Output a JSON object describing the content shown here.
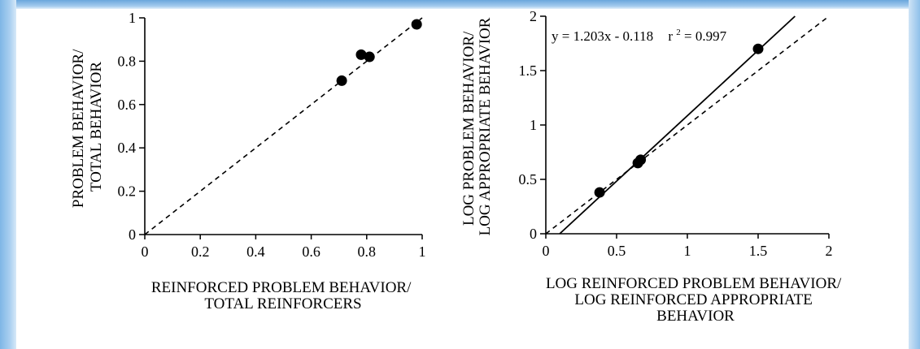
{
  "chart_data": [
    {
      "type": "scatter",
      "xlabel": [
        "REINFORCED PROBLEM BEHAVIOR/",
        "TOTAL REINFORCERS"
      ],
      "ylabel": [
        "PROBLEM BEHAVIOR/",
        "TOTAL BEHAVIOR"
      ],
      "xlim": [
        0,
        1
      ],
      "ylim": [
        0,
        1
      ],
      "xticks": [
        "0",
        "0.2",
        "0.4",
        "0.6",
        "0.8",
        "1"
      ],
      "yticks": [
        "0",
        "0.2",
        "0.4",
        "0.6",
        "0.8",
        "1"
      ],
      "points": [
        {
          "x": 0.71,
          "y": 0.71
        },
        {
          "x": 0.78,
          "y": 0.83
        },
        {
          "x": 0.81,
          "y": 0.82
        },
        {
          "x": 0.98,
          "y": 0.97
        }
      ],
      "reference_line": {
        "style": "dashed",
        "slope": 1,
        "intercept": 0
      },
      "grid": false
    },
    {
      "type": "scatter",
      "xlabel": [
        "LOG REINFORCED PROBLEM BEHAVIOR/",
        "LOG REINFORCED APPROPRIATE",
        "BEHAVIOR"
      ],
      "ylabel": [
        "LOG PROBLEM BEHAVIOR/",
        "LOG APPROPRIATE BEHAVIOR"
      ],
      "xlim": [
        0,
        2
      ],
      "ylim": [
        0,
        2
      ],
      "xticks": [
        "0",
        "0.5",
        "1",
        "1.5",
        "2"
      ],
      "yticks": [
        "0",
        "0.5",
        "1",
        "1.5",
        "2"
      ],
      "points": [
        {
          "x": 0.38,
          "y": 0.38
        },
        {
          "x": 0.65,
          "y": 0.65
        },
        {
          "x": 0.67,
          "y": 0.68
        },
        {
          "x": 1.5,
          "y": 1.7
        }
      ],
      "fit_line": {
        "style": "solid",
        "slope": 1.203,
        "intercept": -0.118
      },
      "reference_line": {
        "style": "dashed",
        "slope": 1,
        "intercept": 0
      },
      "annotation": {
        "equation": "y = 1.203x - 0.118",
        "r2_label": "r",
        "r2_sup": "2",
        "r2_value": " = 0.997"
      },
      "grid": false
    }
  ]
}
